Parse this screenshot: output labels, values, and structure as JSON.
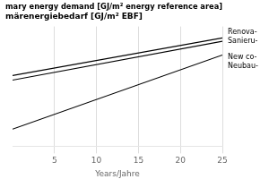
{
  "chart_data": {
    "type": "line",
    "title": [
      "mary energy demand [GJ/m² energy reference area]",
      "märenergiebedarf [GJ/m² EBF]"
    ],
    "x_label": "Years/Jahre",
    "x": [
      0,
      25
    ],
    "series": [
      {
        "color": "#000000",
        "values": [
          0.62,
          0.95
        ]
      },
      {
        "color": "#000000",
        "values": [
          0.58,
          0.92
        ]
      },
      {
        "color": "#000000",
        "values": [
          0.15,
          0.8
        ]
      }
    ],
    "xlim": [
      0,
      25
    ],
    "xticks": [
      5,
      10,
      15,
      20,
      25
    ],
    "ylim": [
      0,
      1.05
    ],
    "yticks": [],
    "grid": true,
    "tick_labels": "x",
    "annotations": [
      "Renova-\nSanieru-",
      "New co-\nNeubau-"
    ]
  }
}
